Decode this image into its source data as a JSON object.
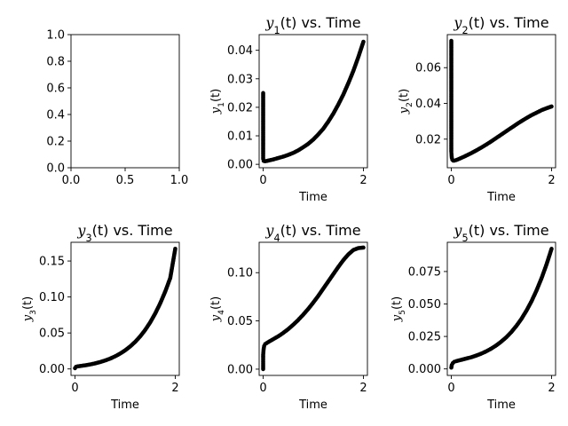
{
  "chart_data": [
    {
      "type": "scatter",
      "title": "",
      "xlabel": "",
      "ylabel": "",
      "xlim": [
        0,
        1
      ],
      "ylim": [
        0,
        1
      ],
      "xticks": [
        "0.0",
        "0.5",
        "1.0"
      ],
      "xtick_values": [
        0,
        0.5,
        1
      ],
      "yticks": [
        "0.0",
        "0.2",
        "0.4",
        "0.6",
        "0.8",
        "1.0"
      ],
      "ytick_values": [
        0,
        0.2,
        0.4,
        0.6,
        0.8,
        1.0
      ],
      "grid": false,
      "series": []
    },
    {
      "type": "scatter",
      "title_func": "y",
      "title_sub": "1",
      "title_arg": "(t)",
      "title_rest": " vs. Time",
      "xlabel": "Time",
      "ylabel_func": "y",
      "ylabel_sub": "1",
      "ylabel_arg": "(t)",
      "xlim": [
        -0.08,
        2.08
      ],
      "ylim": [
        -0.0012,
        0.0455
      ],
      "xticks": [
        "0",
        "2"
      ],
      "xtick_values": [
        0,
        2
      ],
      "yticks": [
        "0.00",
        "0.01",
        "0.02",
        "0.03",
        "0.04"
      ],
      "ytick_values": [
        0,
        0.01,
        0.02,
        0.03,
        0.04
      ],
      "grid": false,
      "color": "#000000",
      "series": [
        {
          "x": [
            0,
            0,
            0,
            0,
            0,
            0.01,
            0.03,
            0.05,
            0.08,
            0.1,
            0.2,
            0.3,
            0.4,
            0.5,
            0.6,
            0.7,
            0.8,
            0.9,
            1.0,
            1.1,
            1.2,
            1.3,
            1.4,
            1.5,
            1.6,
            1.7,
            1.8,
            1.9,
            2.0
          ],
          "y": [
            0.025,
            0.013,
            0.0068,
            0.0035,
            0.0019,
            0.0012,
            0.0011,
            0.0011,
            0.0012,
            0.0013,
            0.0017,
            0.0022,
            0.0027,
            0.0033,
            0.004,
            0.0049,
            0.006,
            0.0072,
            0.0087,
            0.0105,
            0.0125,
            0.015,
            0.0178,
            0.021,
            0.0245,
            0.0285,
            0.0328,
            0.0377,
            0.043
          ]
        }
      ]
    },
    {
      "type": "scatter",
      "title_func": "y",
      "title_sub": "2",
      "title_arg": "(t)",
      "title_rest": " vs. Time",
      "xlabel": "Time",
      "ylabel_func": "y",
      "ylabel_sub": "2",
      "ylabel_arg": "(t)",
      "xlim": [
        -0.08,
        2.08
      ],
      "ylim": [
        0.004,
        0.0785
      ],
      "xticks": [
        "0",
        "2"
      ],
      "xtick_values": [
        0,
        2
      ],
      "yticks": [
        "0.02",
        "0.04",
        "0.06"
      ],
      "ytick_values": [
        0.02,
        0.04,
        0.06
      ],
      "grid": false,
      "color": "#000000",
      "series": [
        {
          "x": [
            0,
            0,
            0,
            0,
            0,
            0,
            0,
            0,
            0.005,
            0.01,
            0.02,
            0.04,
            0.06,
            0.1,
            0.2,
            0.3,
            0.4,
            0.5,
            0.6,
            0.7,
            0.8,
            0.9,
            1.0,
            1.1,
            1.2,
            1.3,
            1.4,
            1.5,
            1.6,
            1.7,
            1.8,
            1.9,
            2.0
          ],
          "y": [
            0.075,
            0.056,
            0.042,
            0.033,
            0.026,
            0.02,
            0.016,
            0.013,
            0.011,
            0.0095,
            0.0085,
            0.008,
            0.008,
            0.0083,
            0.0095,
            0.0108,
            0.0122,
            0.0137,
            0.0153,
            0.017,
            0.0188,
            0.0207,
            0.0226,
            0.0245,
            0.0264,
            0.0283,
            0.0301,
            0.0318,
            0.0334,
            0.0348,
            0.0362,
            0.0373,
            0.0383
          ]
        }
      ]
    },
    {
      "type": "scatter",
      "title_func": "y",
      "title_sub": "3",
      "title_arg": "(t)",
      "title_rest": " vs. Time",
      "xlabel": "Time",
      "ylabel_func": "y",
      "ylabel_sub": "3",
      "ylabel_arg": "(t)",
      "xlim": [
        -0.08,
        2.08
      ],
      "ylim": [
        -0.009,
        0.176
      ],
      "xticks": [
        "0",
        "2"
      ],
      "xtick_values": [
        0,
        2
      ],
      "yticks": [
        "0.00",
        "0.05",
        "0.10",
        "0.15"
      ],
      "ytick_values": [
        0,
        0.05,
        0.1,
        0.15
      ],
      "grid": false,
      "color": "#000000",
      "series": [
        {
          "x": [
            0,
            0.02,
            0.05,
            0.1,
            0.2,
            0.3,
            0.4,
            0.5,
            0.6,
            0.7,
            0.8,
            0.9,
            1.0,
            1.1,
            1.2,
            1.3,
            1.4,
            1.5,
            1.6,
            1.7,
            1.8,
            1.9,
            2.0
          ],
          "y": [
            0.001,
            0.003,
            0.0035,
            0.004,
            0.005,
            0.0062,
            0.0077,
            0.0095,
            0.0117,
            0.0143,
            0.0175,
            0.0213,
            0.0258,
            0.0312,
            0.0376,
            0.0452,
            0.0542,
            0.0647,
            0.077,
            0.0912,
            0.1076,
            0.1263,
            0.167
          ]
        }
      ]
    },
    {
      "type": "scatter",
      "title_func": "y",
      "title_sub": "4",
      "title_arg": "(t)",
      "title_rest": " vs. Time",
      "xlabel": "Time",
      "ylabel_func": "y",
      "ylabel_sub": "4",
      "ylabel_arg": "(t)",
      "xlim": [
        -0.08,
        2.08
      ],
      "ylim": [
        -0.0065,
        0.1315
      ],
      "xticks": [
        "0",
        "2"
      ],
      "xtick_values": [
        0,
        2
      ],
      "yticks": [
        "0.00",
        "0.05",
        "0.10"
      ],
      "ytick_values": [
        0,
        0.05,
        0.1
      ],
      "grid": false,
      "color": "#000000",
      "series": [
        {
          "x": [
            0,
            0,
            0,
            0,
            0.005,
            0.01,
            0.02,
            0.04,
            0.07,
            0.1,
            0.2,
            0.3,
            0.4,
            0.5,
            0.6,
            0.7,
            0.8,
            0.9,
            1.0,
            1.1,
            1.2,
            1.3,
            1.4,
            1.5,
            1.6,
            1.7,
            1.8,
            1.9,
            2.0
          ],
          "y": [
            0.0,
            0.006,
            0.011,
            0.015,
            0.018,
            0.021,
            0.024,
            0.026,
            0.027,
            0.028,
            0.031,
            0.034,
            0.0375,
            0.0415,
            0.046,
            0.051,
            0.0565,
            0.0625,
            0.069,
            0.076,
            0.0835,
            0.091,
            0.0985,
            0.106,
            0.113,
            0.119,
            0.1235,
            0.1255,
            0.126
          ]
        }
      ]
    },
    {
      "type": "scatter",
      "title_func": "y",
      "title_sub": "5",
      "title_arg": "(t)",
      "title_rest": " vs. Time",
      "xlabel": "Time",
      "ylabel_func": "y",
      "ylabel_sub": "5",
      "ylabel_arg": "(t)",
      "xlim": [
        -0.08,
        2.08
      ],
      "ylim": [
        -0.005,
        0.0975
      ],
      "xticks": [
        "0",
        "2"
      ],
      "xtick_values": [
        0,
        2
      ],
      "yticks": [
        "0.000",
        "0.025",
        "0.050",
        "0.075"
      ],
      "ytick_values": [
        0,
        0.025,
        0.05,
        0.075
      ],
      "grid": false,
      "color": "#000000",
      "series": [
        {
          "x": [
            0,
            0.01,
            0.03,
            0.06,
            0.1,
            0.2,
            0.3,
            0.4,
            0.5,
            0.6,
            0.7,
            0.8,
            0.9,
            1.0,
            1.1,
            1.2,
            1.3,
            1.4,
            1.5,
            1.6,
            1.7,
            1.8,
            1.9,
            2.0
          ],
          "y": [
            0.001,
            0.003,
            0.0045,
            0.0055,
            0.006,
            0.007,
            0.008,
            0.009,
            0.0103,
            0.0118,
            0.0136,
            0.0157,
            0.0182,
            0.0211,
            0.0245,
            0.0285,
            0.0332,
            0.0386,
            0.0449,
            0.0521,
            0.0604,
            0.0698,
            0.0805,
            0.0925
          ]
        }
      ]
    }
  ]
}
